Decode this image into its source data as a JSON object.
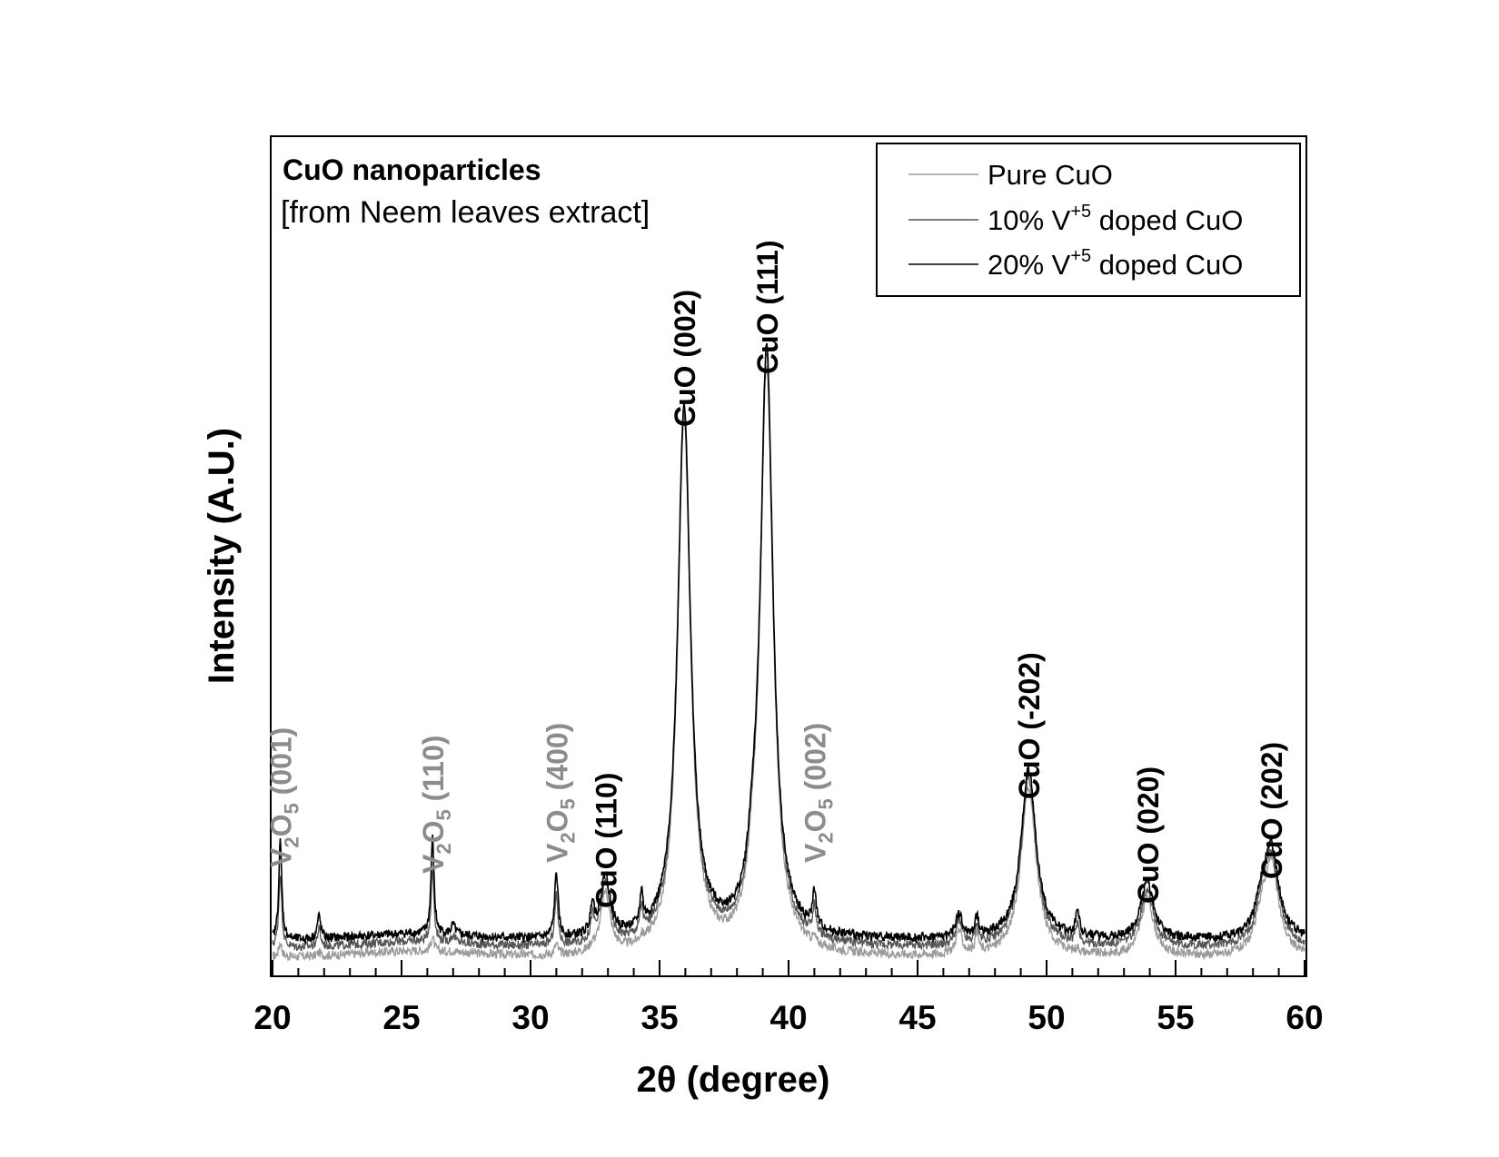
{
  "chart_data": {
    "type": "line",
    "xlabel": "2θ (degree)",
    "ylabel": "Intensity (A.U.)",
    "xlim": [
      20,
      60
    ],
    "x_ticks": [
      "20",
      "25",
      "30",
      "35",
      "40",
      "45",
      "50",
      "55",
      "60"
    ],
    "y_ticks_shown": false,
    "grid": false,
    "annotation": {
      "title": "CuO nanoparticles",
      "subtitle": "[from Neem leaves extract]"
    },
    "legend": {
      "position": "top-right",
      "entries": [
        {
          "label": "Pure CuO",
          "color": "#9a9a9a"
        },
        {
          "label_prefix": "10% V",
          "label_sup": "+5",
          "label_suffix": " doped CuO",
          "color": "#555555"
        },
        {
          "label_prefix": "20% V",
          "label_sup": "+5",
          "label_suffix": " doped CuO",
          "color": "#000000"
        }
      ]
    },
    "series": [
      {
        "name": "Pure CuO",
        "color": "#9a9a9a",
        "baseline": 0.0,
        "v_scale": 0.15
      },
      {
        "name": "10% V+5 doped CuO",
        "color": "#555555",
        "baseline": 0.012,
        "v_scale": 0.75
      },
      {
        "name": "20% V+5 doped CuO",
        "color": "#000000",
        "baseline": 0.022,
        "v_scale": 1.0
      }
    ],
    "peaks": [
      {
        "x": 20.3,
        "h": 0.128,
        "w": 0.07,
        "phase": "V2O5"
      },
      {
        "x": 21.8,
        "h": 0.03,
        "w": 0.08,
        "phase": "V2O5"
      },
      {
        "x": 26.2,
        "h": 0.125,
        "w": 0.07,
        "phase": "V2O5"
      },
      {
        "x": 27.0,
        "h": 0.012,
        "w": 0.1,
        "phase": "V2O5"
      },
      {
        "x": 31.0,
        "h": 0.085,
        "w": 0.08,
        "phase": "V2O5"
      },
      {
        "x": 32.4,
        "h": 0.04,
        "w": 0.08,
        "phase": "V2O5"
      },
      {
        "x": 32.9,
        "h": 0.078,
        "w": 0.22,
        "phase": "CuO"
      },
      {
        "x": 34.3,
        "h": 0.043,
        "w": 0.07,
        "phase": "V2O5"
      },
      {
        "x": 35.95,
        "h": 0.69,
        "w": 0.3,
        "phase": "CuO"
      },
      {
        "x": 38.6,
        "h": 0.04,
        "w": 0.2,
        "phase": "CuO"
      },
      {
        "x": 39.15,
        "h": 0.76,
        "w": 0.3,
        "phase": "CuO"
      },
      {
        "x": 41.0,
        "h": 0.048,
        "w": 0.08,
        "phase": "V2O5"
      },
      {
        "x": 46.6,
        "h": 0.03,
        "w": 0.15,
        "phase": "CuO"
      },
      {
        "x": 47.3,
        "h": 0.025,
        "w": 0.08,
        "phase": "CuO"
      },
      {
        "x": 49.3,
        "h": 0.22,
        "w": 0.35,
        "phase": "CuO"
      },
      {
        "x": 51.2,
        "h": 0.035,
        "w": 0.08,
        "phase": "V2O5"
      },
      {
        "x": 53.9,
        "h": 0.075,
        "w": 0.3,
        "phase": "CuO"
      },
      {
        "x": 58.3,
        "h": 0.03,
        "w": 0.25,
        "phase": "CuO"
      },
      {
        "x": 58.7,
        "h": 0.12,
        "w": 0.35,
        "phase": "CuO"
      }
    ],
    "peak_labels": [
      {
        "x": 20.3,
        "text": "(001)",
        "phase": "V2O5"
      },
      {
        "x": 26.2,
        "text": "(110)",
        "phase": "V2O5"
      },
      {
        "x": 31.0,
        "text": "(400)",
        "phase": "V2O5"
      },
      {
        "x": 41.0,
        "text": "(002)",
        "phase": "V2O5"
      },
      {
        "x": 32.9,
        "text": "CuO (110)",
        "phase": "CuO"
      },
      {
        "x": 35.95,
        "text": "CuO (002)",
        "phase": "CuO"
      },
      {
        "x": 39.15,
        "text": "CuO (111)",
        "phase": "CuO"
      },
      {
        "x": 49.3,
        "text": "CuO (-202)",
        "phase": "CuO"
      },
      {
        "x": 53.9,
        "text": "CuO (020)",
        "phase": "CuO"
      },
      {
        "x": 58.7,
        "text": "CuO (202)",
        "phase": "CuO"
      }
    ],
    "v2o5_label": {
      "v": "V",
      "sub1": "2",
      "o": "O",
      "sub2": "5"
    },
    "colors": {
      "cuo_label": "#000000",
      "v2o5_label": "#8c8c8c",
      "axis": "#000000"
    }
  }
}
